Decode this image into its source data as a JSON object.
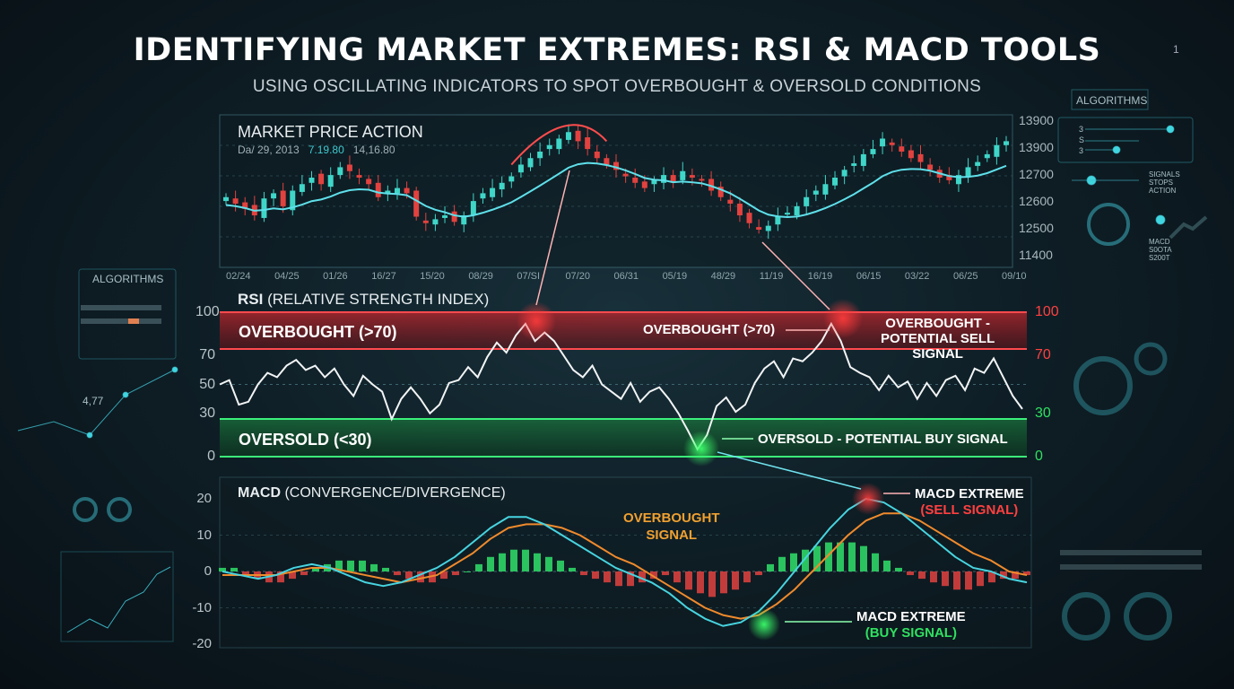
{
  "title": "IDENTIFYING MARKET EXTREMES: RSI & MACD TOOLS",
  "subtitle": "USING OSCILLATING INDICATORS TO SPOT OVERBOUGHT & OVERSOLD CONDITIONS",
  "page_number": "1",
  "side_panels": {
    "left_label": "ALGORITHMS",
    "right_label": "ALGORITHMS",
    "left_readout": "4,77",
    "right_slider_labels": [
      "3",
      "S",
      "3"
    ],
    "right_text_1": [
      "SIGNALS",
      "STOPS",
      "ACTION"
    ],
    "right_text_2": [
      "MACD",
      "S0OTA",
      "S200T"
    ]
  },
  "colors": {
    "bull": "#3fd6c8",
    "bear": "#e2423f",
    "overbought": "#e0333a",
    "oversold": "#2fe06a",
    "macd": "#47d4e0",
    "signal": "#f08a2c"
  },
  "chart_data": [
    {
      "type": "candlestick",
      "title": "MARKET PRICE ACTION",
      "header_readout": [
        "Da/ 29, 2013",
        "7.19.80",
        "14,16.80"
      ],
      "x_tick_labels": [
        "02/24",
        "04/25",
        "01/26",
        "16/27",
        "15/20",
        "08/29",
        "07/SI",
        "07/20",
        "06/31",
        "05/19",
        "48/29",
        "11/19",
        "16/19",
        "06/15",
        "03/22",
        "06/25",
        "09/10"
      ],
      "y_tick_labels": [
        "13900",
        "13900",
        "12700",
        "12600",
        "12500",
        "11400"
      ],
      "closes_relative": [
        45,
        40,
        36,
        31,
        44,
        48,
        38,
        50,
        55,
        60,
        55,
        62,
        68,
        65,
        60,
        55,
        45,
        50,
        52,
        48,
        30,
        25,
        28,
        31,
        26,
        31,
        42,
        48,
        52,
        56,
        61,
        70,
        75,
        80,
        85,
        90,
        95,
        88,
        82,
        75,
        70,
        66,
        61,
        56,
        52,
        58,
        62,
        56,
        65,
        60,
        58,
        50,
        45,
        40,
        31,
        25,
        20,
        23,
        30,
        33,
        38,
        45,
        50,
        55,
        60,
        66,
        71,
        78,
        82,
        90,
        85,
        80,
        75,
        72,
        66,
        60,
        58,
        62,
        68,
        72,
        78,
        85,
        88
      ]
    },
    {
      "type": "line",
      "title": "RSI",
      "subtitle": "(RELATIVE STRENGTH INDEX)",
      "ylim": [
        0,
        100
      ],
      "y_ticks": [
        "100",
        "70",
        "50",
        "30",
        "0"
      ],
      "right_ticks": [
        "100",
        "70",
        "30",
        "0"
      ],
      "thresholds": {
        "overbought": 70,
        "oversold": 30
      },
      "band_labels": {
        "overbought": "OVERBOUGHT (>70)",
        "oversold": "OVERSOLD (<30)"
      },
      "values": [
        50,
        53,
        36,
        38,
        50,
        58,
        55,
        63,
        67,
        60,
        63,
        55,
        61,
        50,
        42,
        56,
        50,
        45,
        26,
        40,
        48,
        40,
        30,
        36,
        51,
        53,
        62,
        55,
        69,
        79,
        72,
        84,
        92,
        80,
        86,
        80,
        70,
        60,
        55,
        63,
        50,
        45,
        40,
        51,
        38,
        45,
        48,
        40,
        30,
        18,
        5,
        15,
        35,
        41,
        31,
        36,
        51,
        61,
        66,
        55,
        68,
        66,
        72,
        80,
        92,
        80,
        62,
        58,
        55,
        46,
        56,
        48,
        52,
        40,
        51,
        42,
        53,
        56,
        46,
        61,
        58,
        68,
        55,
        42,
        33
      ],
      "annotations": [
        "OVERBOUGHT (>70)",
        "OVERBOUGHT -",
        "POTENTIAL SELL",
        "SIGNAL",
        "OVERSOLD - POTENTIAL BUY SIGNAL"
      ]
    },
    {
      "type": "line+bar",
      "title": "MACD",
      "subtitle": "(CONVERGENCE/DIVERGENCE)",
      "ylim": [
        -20,
        20
      ],
      "y_ticks": [
        "20",
        "10",
        "0",
        "-10",
        "-20"
      ],
      "macd": [
        0,
        -1,
        -2,
        -1,
        1,
        2,
        1,
        -1,
        -3,
        -4,
        -3,
        -1,
        1,
        4,
        8,
        12,
        15,
        15,
        13,
        10,
        7,
        4,
        1,
        -1,
        -3,
        -6,
        -10,
        -13,
        -15,
        -14,
        -11,
        -6,
        0,
        6,
        12,
        17,
        20,
        19,
        16,
        12,
        8,
        4,
        1,
        0,
        -2,
        -3
      ],
      "signal": [
        -1,
        -1,
        -1,
        -1,
        0,
        1,
        1,
        0,
        -1,
        -2,
        -3,
        -2,
        -1,
        2,
        5,
        9,
        12,
        13,
        13,
        12,
        10,
        7,
        4,
        2,
        -1,
        -4,
        -7,
        -10,
        -12,
        -13,
        -12,
        -9,
        -5,
        0,
        5,
        10,
        14,
        16,
        16,
        14,
        11,
        8,
        5,
        3,
        0,
        -1
      ],
      "histogram": [
        1,
        1,
        -1,
        -2,
        -3,
        -3,
        -2,
        -1,
        1,
        2,
        3,
        3,
        3,
        2,
        1,
        -1,
        -2,
        -3,
        -3,
        -2,
        -1,
        0,
        2,
        4,
        5,
        6,
        6,
        5,
        4,
        3,
        1,
        -1,
        -2,
        -3,
        -4,
        -4,
        -3,
        -2,
        -1,
        -3,
        -5,
        -6,
        -7,
        -6,
        -5,
        -3,
        -1,
        2,
        4,
        5,
        6,
        7,
        8,
        8,
        8,
        7,
        5,
        3,
        1,
        -1,
        -2,
        -3,
        -4,
        -5,
        -5,
        -4,
        -3,
        -2,
        -2,
        -1
      ],
      "annotations": [
        "OVERBOUGHT",
        "SIGNAL",
        "MACD EXTREME",
        "(SELL SIGNAL)",
        "MACD EXTREME",
        "(BUY SIGNAL)"
      ]
    }
  ]
}
